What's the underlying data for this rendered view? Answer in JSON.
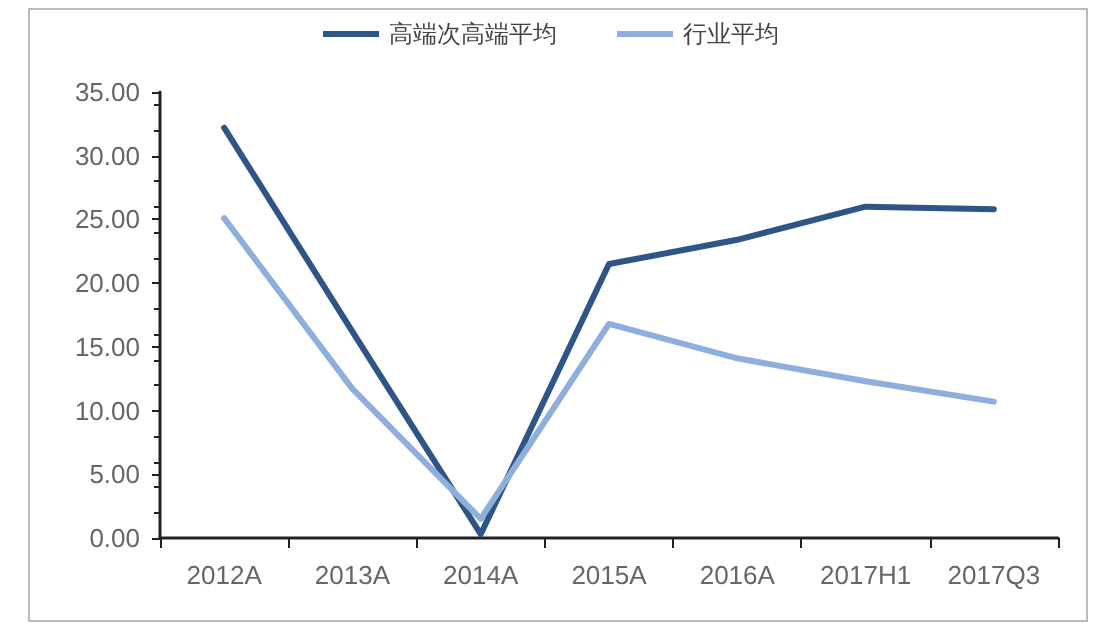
{
  "chart_data": {
    "type": "line",
    "categories": [
      "2012A",
      "2013A",
      "2014A",
      "2015A",
      "2016A",
      "2017H1",
      "2017Q3"
    ],
    "series": [
      {
        "name": "高端次高端平均",
        "color": "#2e5585",
        "values": [
          32.2,
          16.2,
          0.3,
          21.5,
          23.4,
          26.0,
          25.8
        ]
      },
      {
        "name": "行业平均",
        "color": "#8eaedb",
        "values": [
          25.1,
          11.7,
          1.5,
          16.8,
          14.1,
          12.3,
          10.7
        ]
      }
    ],
    "ylim": [
      0,
      35
    ],
    "yticks": [
      {
        "value": 0,
        "label": "0.00"
      },
      {
        "value": 5,
        "label": "5.00"
      },
      {
        "value": 10,
        "label": "10.00"
      },
      {
        "value": 15,
        "label": "15.00"
      },
      {
        "value": 20,
        "label": "20.00"
      },
      {
        "value": 25,
        "label": "25.00"
      },
      {
        "value": 30,
        "label": "30.00"
      },
      {
        "value": 35,
        "label": "35.00"
      }
    ],
    "grid": false,
    "legend": "top",
    "marker": "none",
    "line_style": "solid"
  }
}
